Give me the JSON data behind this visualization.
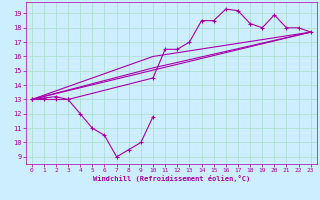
{
  "xlabel": "Windchill (Refroidissement éolien,°C)",
  "bg_color": "#cceeff",
  "grid_color": "#aaddcc",
  "line_color": "#aa00aa",
  "xlim": [
    -0.5,
    23.5
  ],
  "ylim": [
    8.5,
    19.8
  ],
  "xticks": [
    0,
    1,
    2,
    3,
    4,
    5,
    6,
    7,
    8,
    9,
    10,
    11,
    12,
    13,
    14,
    15,
    16,
    17,
    18,
    19,
    20,
    21,
    22,
    23
  ],
  "yticks": [
    9,
    10,
    11,
    12,
    13,
    14,
    15,
    16,
    17,
    18,
    19
  ],
  "line1_x": [
    0,
    1,
    2,
    3,
    4,
    5,
    6,
    7,
    8,
    9,
    10
  ],
  "line1_y": [
    13,
    13,
    13,
    13,
    12,
    11,
    10.5,
    9,
    9.5,
    10,
    11.8
  ],
  "line2_x": [
    0,
    1,
    2,
    3,
    10,
    11,
    12,
    13,
    14,
    15,
    16,
    17,
    18,
    19,
    20,
    21,
    22,
    23
  ],
  "line2_y": [
    13,
    13.1,
    13.2,
    13,
    14.5,
    16.5,
    16.5,
    17,
    18.5,
    18.5,
    19.3,
    19.2,
    18.3,
    18,
    18.9,
    18,
    18.0,
    17.7
  ],
  "line3_x": [
    0,
    23
  ],
  "line3_y": [
    13,
    17.7
  ],
  "line4_x": [
    0,
    10,
    23
  ],
  "line4_y": [
    13,
    15.2,
    17.7
  ],
  "line5_x": [
    0,
    10,
    23
  ],
  "line5_y": [
    13,
    16.0,
    17.7
  ]
}
